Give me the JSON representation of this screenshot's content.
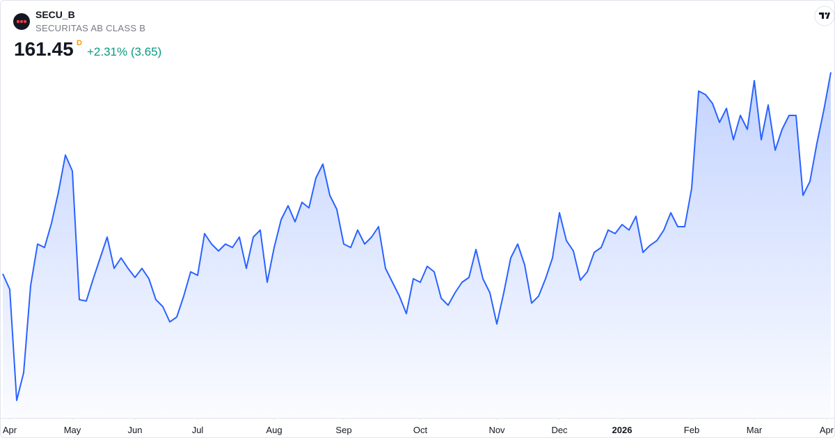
{
  "header": {
    "symbol": "SECU_B",
    "name": "SECURITAS AB CLASS B",
    "price": "161.45",
    "interval": "D",
    "change": "+2.31% (3.65)"
  },
  "chart_data": {
    "type": "area",
    "color": "#2962ff",
    "values": [
      140.74,
      139.16,
      127.74,
      130.59,
      139.52,
      143.81,
      143.45,
      145.95,
      149.16,
      152.95,
      151.31,
      138.09,
      137.95,
      140.24,
      142.38,
      144.52,
      141.31,
      142.38,
      141.31,
      140.38,
      141.31,
      140.24,
      138.09,
      137.38,
      135.81,
      136.31,
      138.45,
      140.95,
      140.59,
      144.88,
      143.81,
      143.09,
      143.81,
      143.45,
      144.52,
      141.31,
      144.52,
      145.24,
      139.88,
      143.45,
      146.31,
      147.74,
      146.09,
      148.09,
      147.52,
      150.59,
      152.02,
      148.81,
      147.38,
      143.81,
      143.45,
      145.24,
      143.81,
      144.52,
      145.59,
      141.31,
      139.88,
      138.45,
      136.66,
      140.24,
      139.88,
      141.52,
      140.95,
      138.24,
      137.52,
      138.81,
      139.88,
      140.38,
      143.24,
      140.24,
      138.81,
      135.59,
      138.81,
      142.38,
      143.81,
      141.66,
      137.74,
      138.45,
      140.24,
      142.38,
      147.02,
      144.16,
      143.09,
      140.09,
      140.95,
      142.95,
      143.45,
      145.24,
      144.88,
      145.81,
      145.24,
      146.66,
      142.95,
      143.66,
      144.16,
      145.24,
      147.02,
      145.59,
      145.59,
      149.52,
      159.52,
      159.16,
      158.24,
      156.31,
      157.74,
      154.52,
      157.02,
      155.59,
      160.59,
      154.52,
      158.09,
      153.45,
      155.59,
      157.02,
      157.02,
      148.81,
      150.24,
      154.16,
      157.59,
      161.45
    ],
    "ylim": [
      126,
      164
    ],
    "xticks": [
      {
        "value": 1,
        "label": "Apr"
      },
      {
        "value": 10,
        "label": "May"
      },
      {
        "value": 19,
        "label": "Jun"
      },
      {
        "value": 28,
        "label": "Jul"
      },
      {
        "value": 39,
        "label": "Aug"
      },
      {
        "value": 49,
        "label": "Sep"
      },
      {
        "value": 60,
        "label": "Oct"
      },
      {
        "value": 71,
        "label": "Nov"
      },
      {
        "value": 80,
        "label": "Dec"
      },
      {
        "value": 89,
        "label": "2026"
      },
      {
        "value": 99,
        "label": "Feb"
      },
      {
        "value": 108,
        "label": "Mar"
      },
      {
        "value": 119,
        "label": "Apr"
      }
    ]
  }
}
